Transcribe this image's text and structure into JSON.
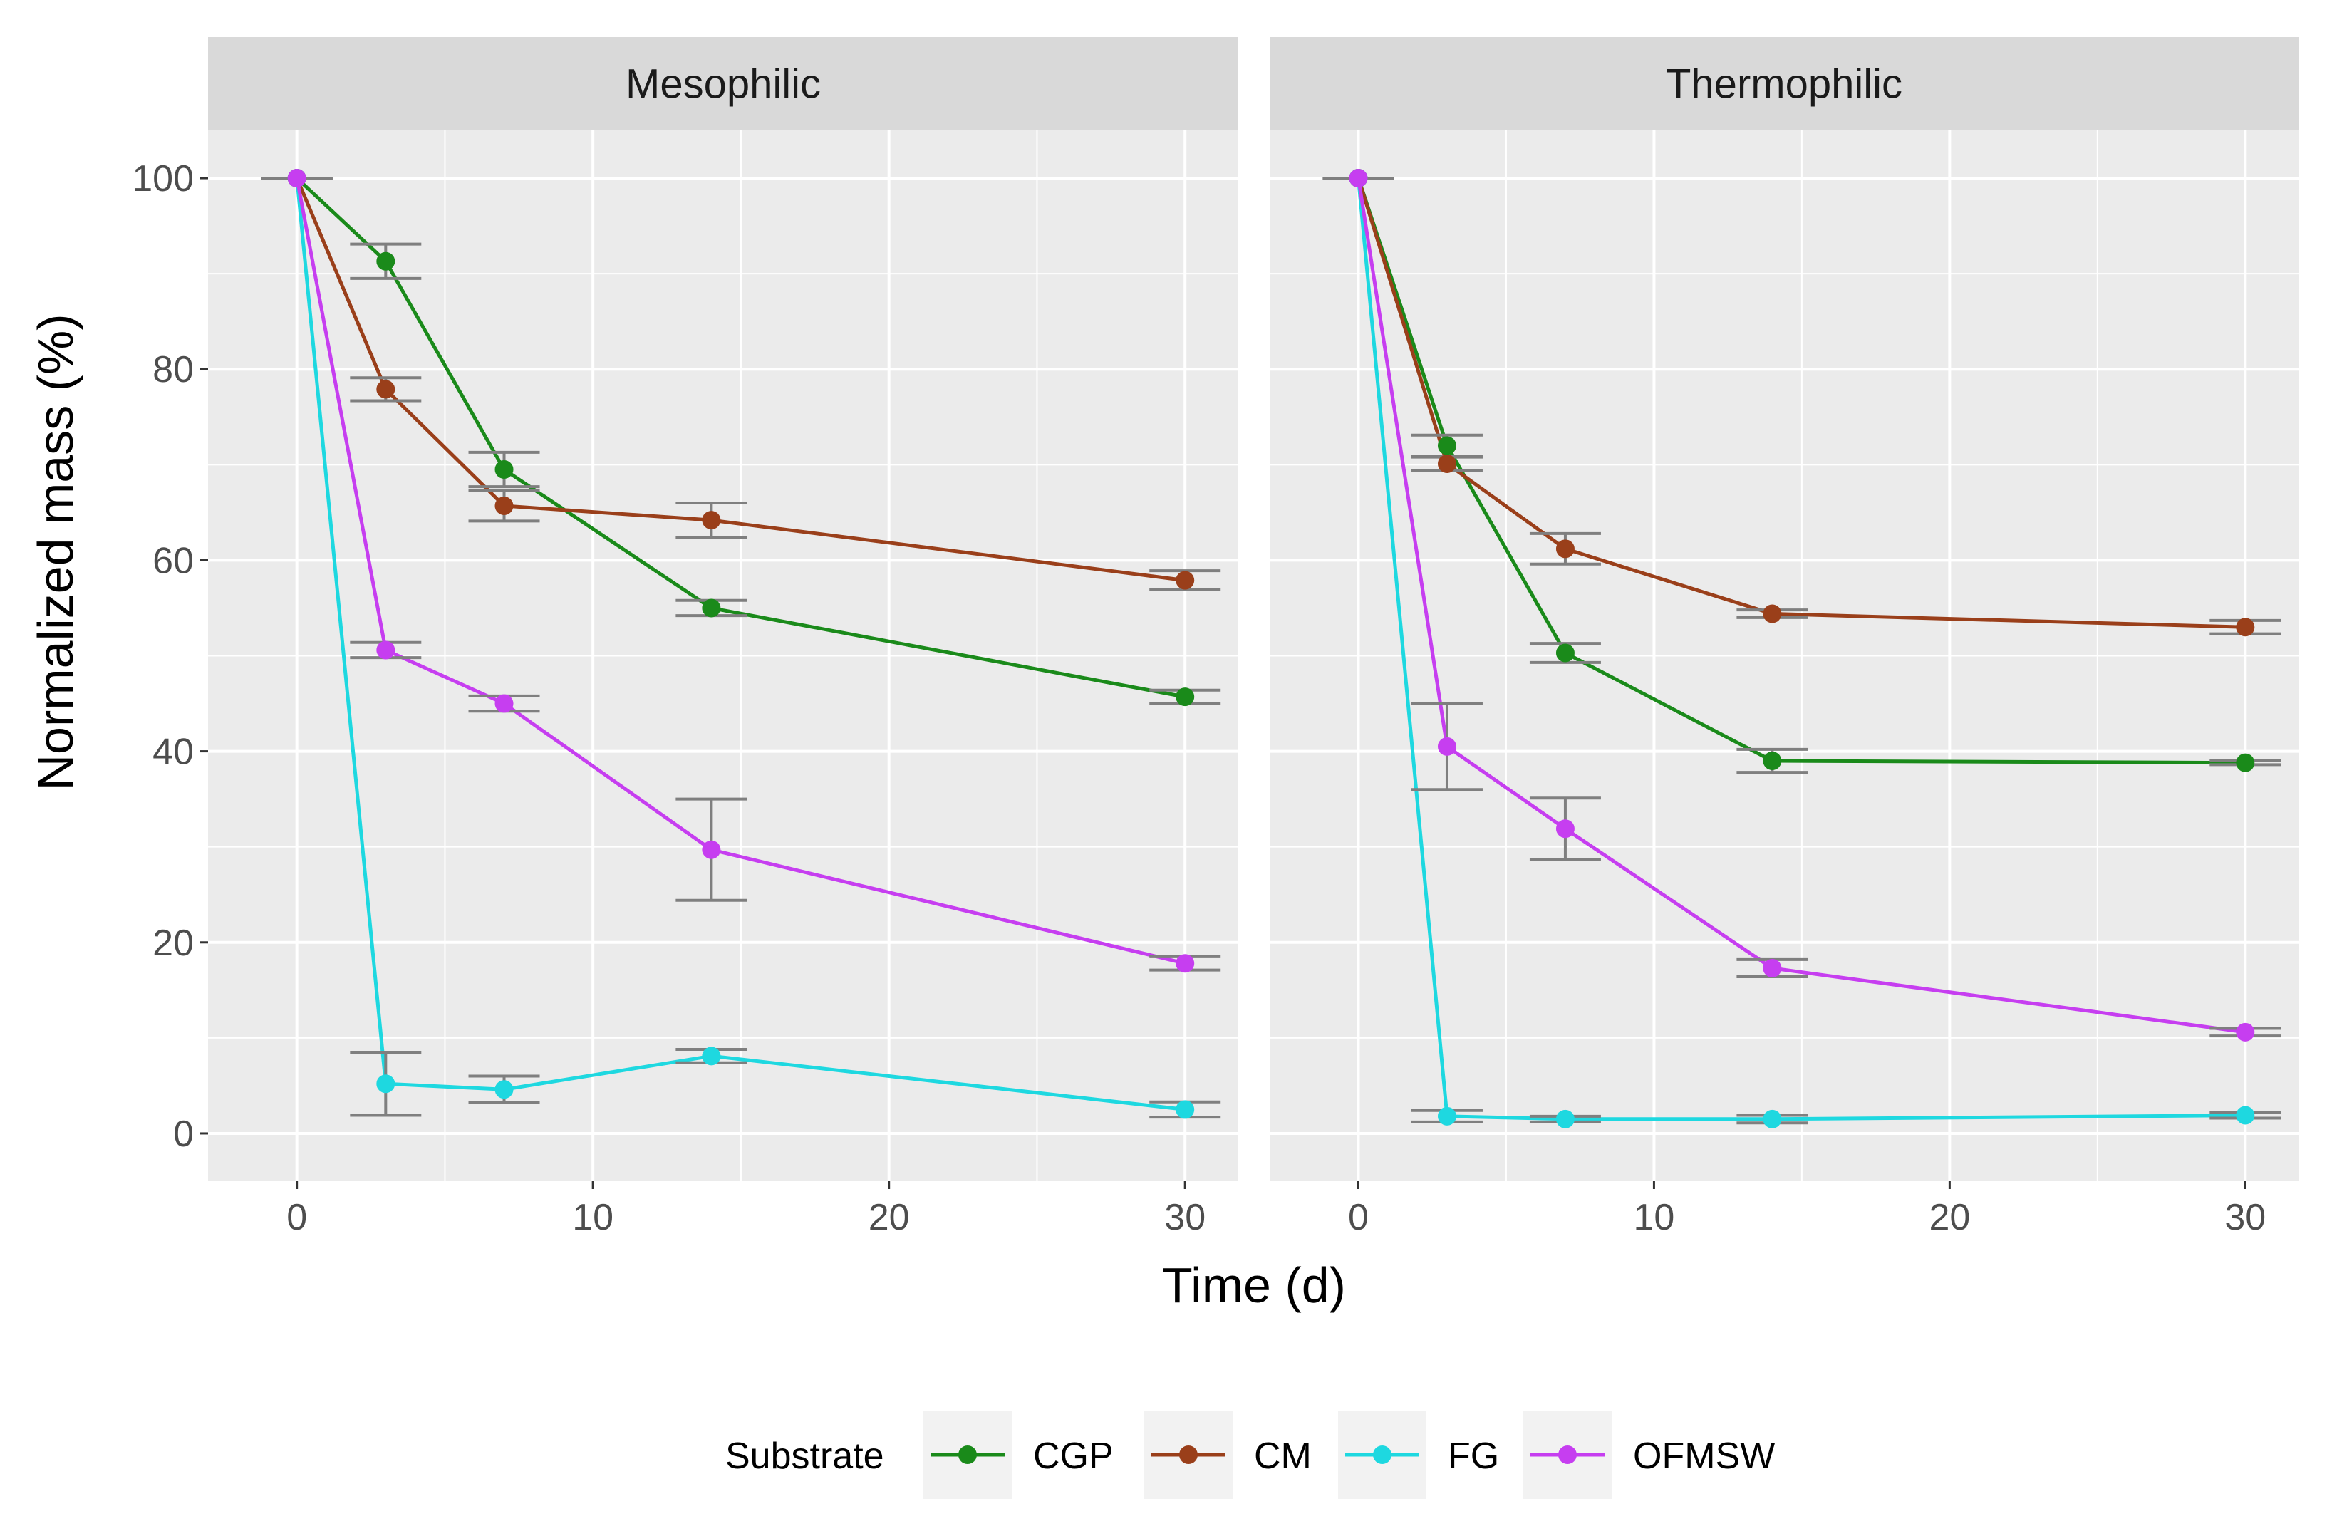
{
  "chart_data": {
    "type": "line",
    "title": "",
    "xlabel": "Time (d)",
    "ylabel": "Normalized mass (%)",
    "xlim": [
      -3,
      31.8
    ],
    "ylim": [
      -5,
      105
    ],
    "xticks": [
      "0",
      "10",
      "20",
      "30"
    ],
    "yticks": [
      "0",
      "20",
      "40",
      "60",
      "80",
      "100"
    ],
    "legend": {
      "title": "Substrate",
      "placement": "bottom",
      "entries": [
        "CGP",
        "CM",
        "FG",
        "OFMSW"
      ]
    },
    "colors": {
      "CGP": "#1a8a1a",
      "CM": "#9a3f1a",
      "FG": "#1ed8e0",
      "OFMSW": "#c63ef0",
      "errorbar": "#7f7f7f",
      "panel": "#ebebeb",
      "strip": "#d9d9d9",
      "grid": "#ffffff"
    },
    "panels": [
      {
        "name": "Mesophilic",
        "series": [
          {
            "name": "CGP",
            "x": [
              0,
              3,
              7,
              14,
              30
            ],
            "y": [
              100,
              91.3,
              69.5,
              55.0,
              45.7
            ],
            "err": [
              0,
              1.8,
              1.8,
              0.8,
              0.7
            ]
          },
          {
            "name": "CM",
            "x": [
              0,
              3,
              7,
              14,
              30
            ],
            "y": [
              100,
              77.9,
              65.7,
              64.2,
              57.9
            ],
            "err": [
              0,
              1.2,
              1.6,
              1.8,
              1.0
            ]
          },
          {
            "name": "FG",
            "x": [
              0,
              3,
              7,
              14,
              30
            ],
            "y": [
              100,
              5.2,
              4.6,
              8.1,
              2.5
            ],
            "err": [
              0,
              3.3,
              1.4,
              0.7,
              0.8
            ]
          },
          {
            "name": "OFMSW",
            "x": [
              0,
              3,
              7,
              14,
              30
            ],
            "y": [
              100,
              50.6,
              45.0,
              29.7,
              17.8
            ],
            "err": [
              0,
              0.8,
              0.8,
              5.3,
              0.7
            ]
          }
        ]
      },
      {
        "name": "Thermophilic",
        "series": [
          {
            "name": "CGP",
            "x": [
              0,
              3,
              7,
              14,
              30
            ],
            "y": [
              100,
              72.0,
              50.3,
              39.0,
              38.8
            ],
            "err": [
              0,
              1.1,
              1.0,
              1.2,
              0.2
            ]
          },
          {
            "name": "CM",
            "x": [
              0,
              3,
              7,
              14,
              30
            ],
            "y": [
              100,
              70.1,
              61.2,
              54.4,
              53.0
            ],
            "err": [
              0,
              0.7,
              1.6,
              0.4,
              0.7
            ]
          },
          {
            "name": "FG",
            "x": [
              0,
              3,
              7,
              14,
              30
            ],
            "y": [
              100,
              1.8,
              1.5,
              1.5,
              1.9
            ],
            "err": [
              0,
              0.6,
              0.3,
              0.4,
              0.3
            ]
          },
          {
            "name": "OFMSW",
            "x": [
              0,
              3,
              7,
              14,
              30
            ],
            "y": [
              100,
              40.5,
              31.9,
              17.3,
              10.6
            ],
            "err": [
              0,
              4.5,
              3.2,
              0.9,
              0.4
            ]
          }
        ]
      }
    ]
  }
}
